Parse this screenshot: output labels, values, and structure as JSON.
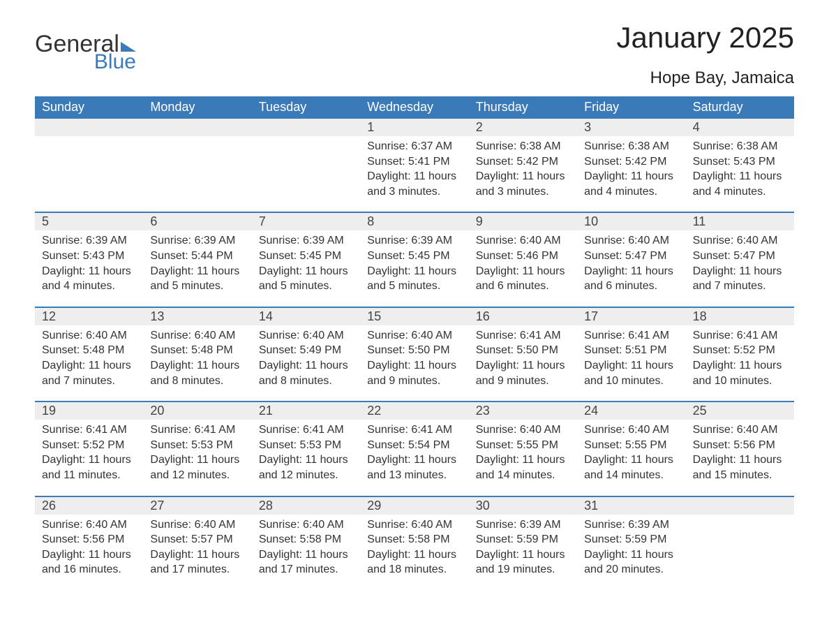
{
  "logo": {
    "line1": "General",
    "line2": "Blue"
  },
  "title": "January 2025",
  "location": "Hope Bay, Jamaica",
  "colors": {
    "header_bg": "#3b7ab8",
    "header_text": "#ffffff",
    "row_sep": "#3b7ab8",
    "daynum_bg": "#eeeeee",
    "text": "#333333",
    "page_bg": "#ffffff",
    "logo_accent": "#3b7ab8"
  },
  "fonts": {
    "title_size_pt": 42,
    "location_size_pt": 24,
    "dayhead_size_pt": 18,
    "daynum_size_pt": 18,
    "body_size_pt": 16
  },
  "weekdays": [
    "Sunday",
    "Monday",
    "Tuesday",
    "Wednesday",
    "Thursday",
    "Friday",
    "Saturday"
  ],
  "weeks": [
    [
      {
        "day": "",
        "sunrise": "",
        "sunset": "",
        "daylight": ""
      },
      {
        "day": "",
        "sunrise": "",
        "sunset": "",
        "daylight": ""
      },
      {
        "day": "",
        "sunrise": "",
        "sunset": "",
        "daylight": ""
      },
      {
        "day": "1",
        "sunrise": "Sunrise: 6:37 AM",
        "sunset": "Sunset: 5:41 PM",
        "daylight": "Daylight: 11 hours and 3 minutes."
      },
      {
        "day": "2",
        "sunrise": "Sunrise: 6:38 AM",
        "sunset": "Sunset: 5:42 PM",
        "daylight": "Daylight: 11 hours and 3 minutes."
      },
      {
        "day": "3",
        "sunrise": "Sunrise: 6:38 AM",
        "sunset": "Sunset: 5:42 PM",
        "daylight": "Daylight: 11 hours and 4 minutes."
      },
      {
        "day": "4",
        "sunrise": "Sunrise: 6:38 AM",
        "sunset": "Sunset: 5:43 PM",
        "daylight": "Daylight: 11 hours and 4 minutes."
      }
    ],
    [
      {
        "day": "5",
        "sunrise": "Sunrise: 6:39 AM",
        "sunset": "Sunset: 5:43 PM",
        "daylight": "Daylight: 11 hours and 4 minutes."
      },
      {
        "day": "6",
        "sunrise": "Sunrise: 6:39 AM",
        "sunset": "Sunset: 5:44 PM",
        "daylight": "Daylight: 11 hours and 5 minutes."
      },
      {
        "day": "7",
        "sunrise": "Sunrise: 6:39 AM",
        "sunset": "Sunset: 5:45 PM",
        "daylight": "Daylight: 11 hours and 5 minutes."
      },
      {
        "day": "8",
        "sunrise": "Sunrise: 6:39 AM",
        "sunset": "Sunset: 5:45 PM",
        "daylight": "Daylight: 11 hours and 5 minutes."
      },
      {
        "day": "9",
        "sunrise": "Sunrise: 6:40 AM",
        "sunset": "Sunset: 5:46 PM",
        "daylight": "Daylight: 11 hours and 6 minutes."
      },
      {
        "day": "10",
        "sunrise": "Sunrise: 6:40 AM",
        "sunset": "Sunset: 5:47 PM",
        "daylight": "Daylight: 11 hours and 6 minutes."
      },
      {
        "day": "11",
        "sunrise": "Sunrise: 6:40 AM",
        "sunset": "Sunset: 5:47 PM",
        "daylight": "Daylight: 11 hours and 7 minutes."
      }
    ],
    [
      {
        "day": "12",
        "sunrise": "Sunrise: 6:40 AM",
        "sunset": "Sunset: 5:48 PM",
        "daylight": "Daylight: 11 hours and 7 minutes."
      },
      {
        "day": "13",
        "sunrise": "Sunrise: 6:40 AM",
        "sunset": "Sunset: 5:48 PM",
        "daylight": "Daylight: 11 hours and 8 minutes."
      },
      {
        "day": "14",
        "sunrise": "Sunrise: 6:40 AM",
        "sunset": "Sunset: 5:49 PM",
        "daylight": "Daylight: 11 hours and 8 minutes."
      },
      {
        "day": "15",
        "sunrise": "Sunrise: 6:40 AM",
        "sunset": "Sunset: 5:50 PM",
        "daylight": "Daylight: 11 hours and 9 minutes."
      },
      {
        "day": "16",
        "sunrise": "Sunrise: 6:41 AM",
        "sunset": "Sunset: 5:50 PM",
        "daylight": "Daylight: 11 hours and 9 minutes."
      },
      {
        "day": "17",
        "sunrise": "Sunrise: 6:41 AM",
        "sunset": "Sunset: 5:51 PM",
        "daylight": "Daylight: 11 hours and 10 minutes."
      },
      {
        "day": "18",
        "sunrise": "Sunrise: 6:41 AM",
        "sunset": "Sunset: 5:52 PM",
        "daylight": "Daylight: 11 hours and 10 minutes."
      }
    ],
    [
      {
        "day": "19",
        "sunrise": "Sunrise: 6:41 AM",
        "sunset": "Sunset: 5:52 PM",
        "daylight": "Daylight: 11 hours and 11 minutes."
      },
      {
        "day": "20",
        "sunrise": "Sunrise: 6:41 AM",
        "sunset": "Sunset: 5:53 PM",
        "daylight": "Daylight: 11 hours and 12 minutes."
      },
      {
        "day": "21",
        "sunrise": "Sunrise: 6:41 AM",
        "sunset": "Sunset: 5:53 PM",
        "daylight": "Daylight: 11 hours and 12 minutes."
      },
      {
        "day": "22",
        "sunrise": "Sunrise: 6:41 AM",
        "sunset": "Sunset: 5:54 PM",
        "daylight": "Daylight: 11 hours and 13 minutes."
      },
      {
        "day": "23",
        "sunrise": "Sunrise: 6:40 AM",
        "sunset": "Sunset: 5:55 PM",
        "daylight": "Daylight: 11 hours and 14 minutes."
      },
      {
        "day": "24",
        "sunrise": "Sunrise: 6:40 AM",
        "sunset": "Sunset: 5:55 PM",
        "daylight": "Daylight: 11 hours and 14 minutes."
      },
      {
        "day": "25",
        "sunrise": "Sunrise: 6:40 AM",
        "sunset": "Sunset: 5:56 PM",
        "daylight": "Daylight: 11 hours and 15 minutes."
      }
    ],
    [
      {
        "day": "26",
        "sunrise": "Sunrise: 6:40 AM",
        "sunset": "Sunset: 5:56 PM",
        "daylight": "Daylight: 11 hours and 16 minutes."
      },
      {
        "day": "27",
        "sunrise": "Sunrise: 6:40 AM",
        "sunset": "Sunset: 5:57 PM",
        "daylight": "Daylight: 11 hours and 17 minutes."
      },
      {
        "day": "28",
        "sunrise": "Sunrise: 6:40 AM",
        "sunset": "Sunset: 5:58 PM",
        "daylight": "Daylight: 11 hours and 17 minutes."
      },
      {
        "day": "29",
        "sunrise": "Sunrise: 6:40 AM",
        "sunset": "Sunset: 5:58 PM",
        "daylight": "Daylight: 11 hours and 18 minutes."
      },
      {
        "day": "30",
        "sunrise": "Sunrise: 6:39 AM",
        "sunset": "Sunset: 5:59 PM",
        "daylight": "Daylight: 11 hours and 19 minutes."
      },
      {
        "day": "31",
        "sunrise": "Sunrise: 6:39 AM",
        "sunset": "Sunset: 5:59 PM",
        "daylight": "Daylight: 11 hours and 20 minutes."
      },
      {
        "day": "",
        "sunrise": "",
        "sunset": "",
        "daylight": ""
      }
    ]
  ]
}
